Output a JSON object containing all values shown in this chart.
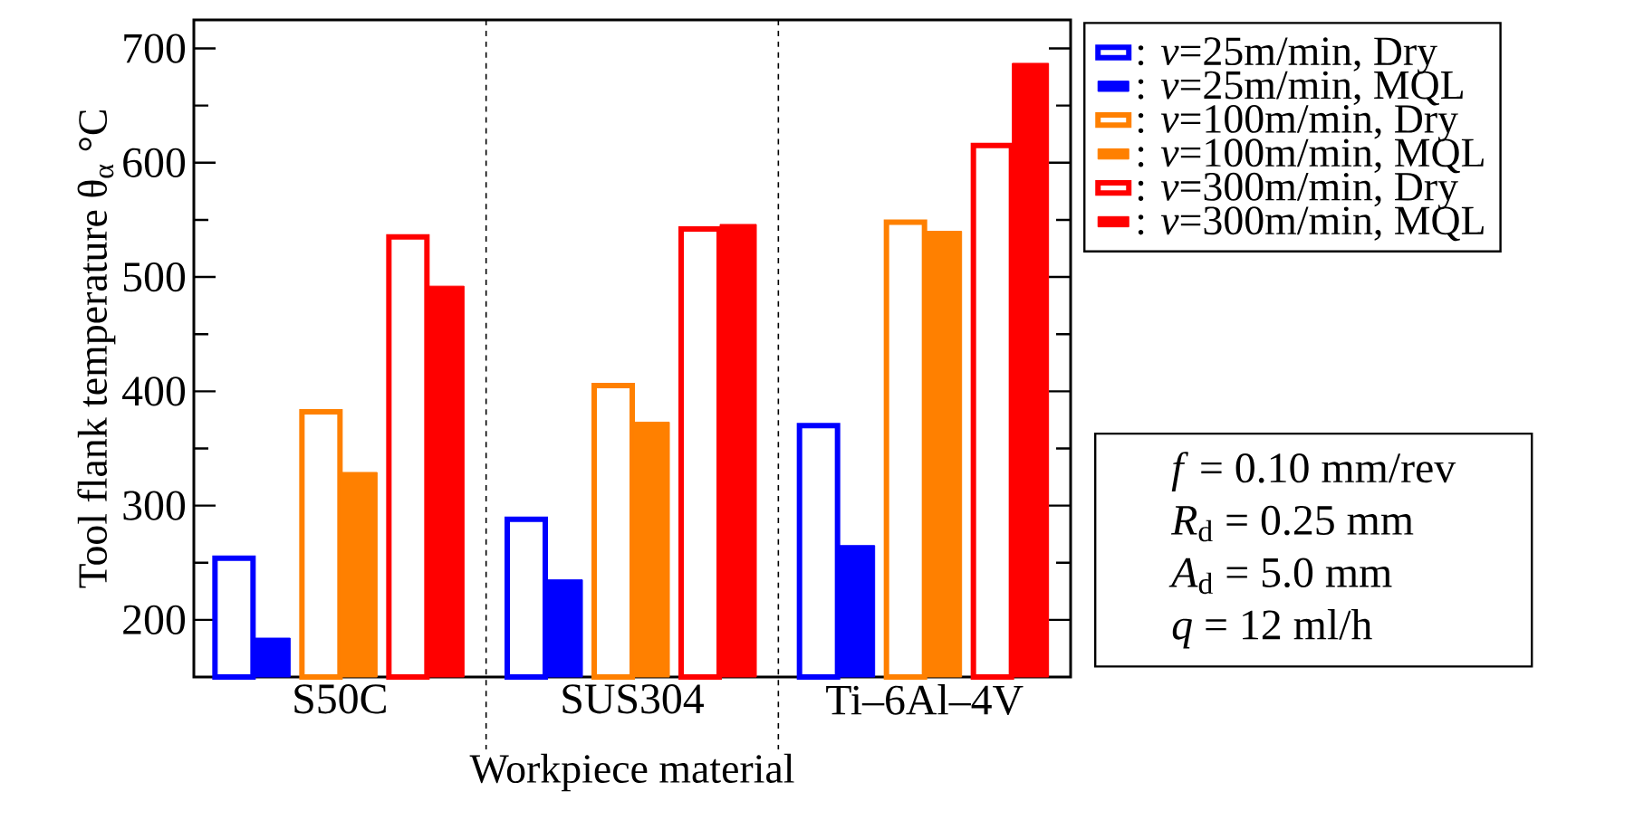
{
  "chart_data": {
    "type": "bar",
    "xlabel": "Workpiece material",
    "ylabel": "Tool flank temperature   θ$_{α}$   °C",
    "categories": [
      "S50C",
      "SUS304",
      "Ti–6Al–4V"
    ],
    "series": [
      {
        "name": ": *v*=25m/min, Dry",
        "color": "#0000ff",
        "values": [
          254,
          288,
          370
        ]
      },
      {
        "name": ": *v*=25m/min, MQL",
        "color": "#0000ff",
        "values": [
          184,
          235,
          265
        ]
      },
      {
        "name": ": *v*=100m/min, Dry",
        "color": "#ff8000",
        "values": [
          382,
          405,
          548
        ]
      },
      {
        "name": ": *v*=100m/min, MQL",
        "color": "#ff8000",
        "values": [
          329,
          373,
          540
        ]
      },
      {
        "name": ": *v*=300m/min, Dry",
        "color": "#ff0000",
        "values": [
          535,
          542,
          615
        ]
      },
      {
        "name": ": *v*=300m/min, MQL",
        "color": "#ff0000",
        "values": [
          492,
          546,
          687
        ]
      }
    ],
    "ylim": [
      150,
      725
    ],
    "yticks": [
      200,
      {
        "value": 250,
        "label": null
      },
      300,
      {
        "value": 350,
        "label": null
      },
      400,
      {
        "value": 450,
        "label": null
      },
      500,
      {
        "value": 550,
        "label": null
      },
      600,
      {
        "value": 650,
        "label": null
      },
      700
    ],
    "grid": "x",
    "legend": "right",
    "annotations": [
      "*f* = 0.10 mm/rev",
      "*R*$_{d}$ = 0.25 mm",
      "*A*$_{d}$ = 5.0 mm",
      "*q* = 12 ml/h"
    ]
  }
}
